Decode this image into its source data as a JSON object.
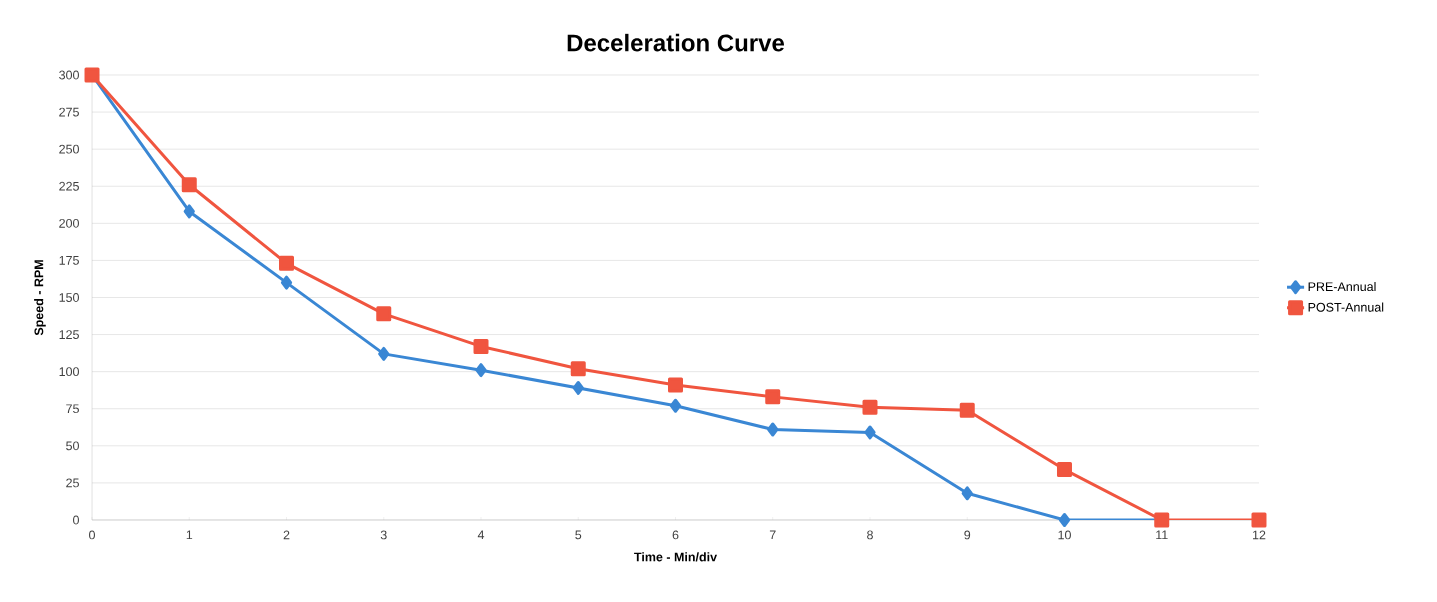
{
  "chart_data": {
    "type": "line",
    "title": "Deceleration Curve",
    "xlabel": "Time - Min/div",
    "ylabel": "Speed - RPM",
    "x": [
      0,
      1,
      2,
      3,
      4,
      5,
      6,
      7,
      8,
      9,
      10,
      11,
      12
    ],
    "series": [
      {
        "name": "PRE-Annual",
        "color": "#3a87d4",
        "marker": "diamond",
        "values": [
          300,
          208,
          160,
          112,
          101,
          89,
          77,
          61,
          59,
          18,
          0,
          0,
          null
        ]
      },
      {
        "name": "POST-Annual",
        "color": "#f0553f",
        "marker": "square",
        "values": [
          300,
          226,
          173,
          139,
          117,
          102,
          91,
          83,
          76,
          74,
          34,
          0,
          0
        ]
      }
    ],
    "xlim": [
      0,
      12
    ],
    "xticks": [
      0,
      1,
      2,
      3,
      4,
      5,
      6,
      7,
      8,
      9,
      10,
      11,
      12
    ],
    "ylim": [
      0,
      300
    ],
    "yticks": [
      0,
      25,
      50,
      75,
      100,
      125,
      150,
      175,
      200,
      225,
      250,
      275,
      300
    ],
    "grid": "y",
    "legend": "right",
    "line_style": "solid"
  }
}
